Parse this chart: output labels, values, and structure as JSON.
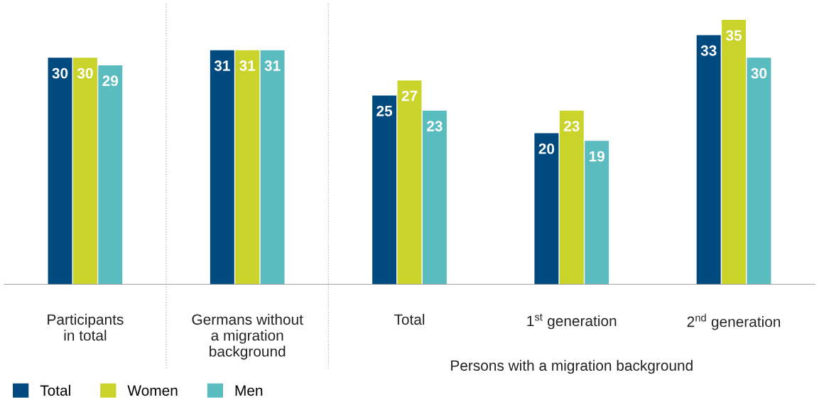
{
  "chart_data": {
    "type": "bar",
    "categories": [
      "Participants\nin total",
      "Germans without\na migration\nbackground",
      "Total",
      "1$^{st}$ generation",
      "2$^{nd}$ generation"
    ],
    "series": [
      {
        "name": "Total",
        "color": "#004a80",
        "values": [
          30,
          31,
          25,
          20,
          33
        ]
      },
      {
        "name": "Women",
        "color": "#c9d32a",
        "values": [
          30,
          31,
          27,
          23,
          35
        ]
      },
      {
        "name": "Men",
        "color": "#5bbcbf",
        "values": [
          29,
          31,
          23,
          19,
          30
        ]
      }
    ],
    "data_labels": true,
    "annotations": [
      "Persons with a migration background"
    ],
    "legend": "bottom left",
    "grid": false
  }
}
